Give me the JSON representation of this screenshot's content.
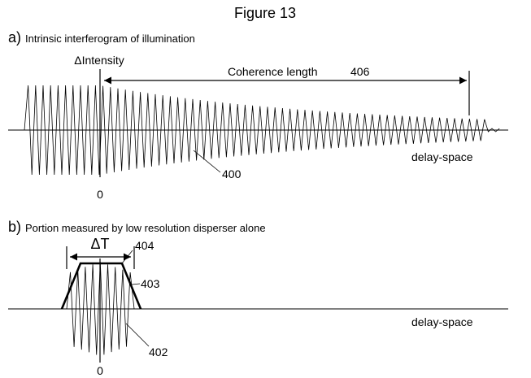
{
  "figure": {
    "title": "Figure 13"
  },
  "panel_a": {
    "letter": "a)",
    "caption": "Intrinsic interferogram of illumination",
    "y_axis_label": "ΔIntensity",
    "x_axis_label": "delay-space",
    "zero_label": "0",
    "coherence_label": "Coherence length",
    "coherence_ref": "406",
    "waveform_ref": "400"
  },
  "panel_b": {
    "letter": "b)",
    "caption": "Portion measured by low resolution disperser alone",
    "delta_label": "ΔT",
    "x_axis_label": "delay-space",
    "zero_label": "0",
    "top_ref": "404",
    "envelope_ref": "403",
    "waveform_ref": "402"
  }
}
